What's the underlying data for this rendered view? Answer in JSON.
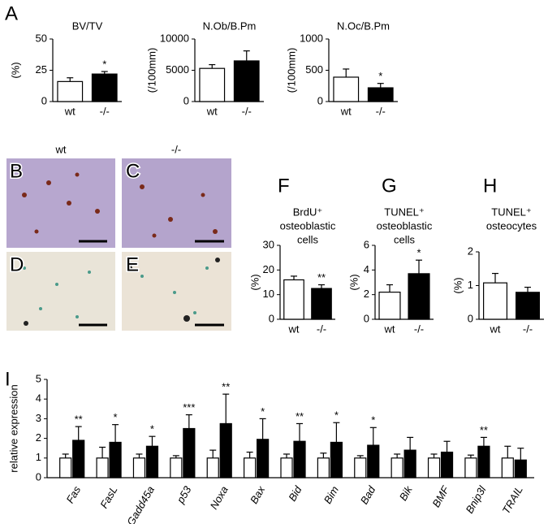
{
  "figure": {
    "panel_labels": [
      "A",
      "B",
      "C",
      "D",
      "E",
      "F",
      "G",
      "H",
      "I"
    ],
    "micrograph_labels": [
      "wt",
      "-/-"
    ]
  },
  "chart_data": [
    {
      "type": "bar",
      "title": [
        "BV/TV"
      ],
      "ylabel": "(%)",
      "categories": [
        "wt",
        "-/-"
      ],
      "values": [
        16,
        22
      ],
      "errors": [
        3,
        2
      ],
      "colors": [
        "#ffffff",
        "#000000"
      ],
      "annotations": [
        null,
        "*"
      ],
      "ylim": [
        0,
        50
      ],
      "yticks": [
        0,
        25,
        50
      ]
    },
    {
      "type": "bar",
      "title": [
        "N.Ob/B.Pm"
      ],
      "ylabel": "(/100mm)",
      "categories": [
        "wt",
        "-/-"
      ],
      "values": [
        5300,
        6500
      ],
      "errors": [
        600,
        1600
      ],
      "colors": [
        "#ffffff",
        "#000000"
      ],
      "annotations": [
        null,
        null
      ],
      "ylim": [
        0,
        10000
      ],
      "yticks": [
        0,
        5000,
        10000
      ]
    },
    {
      "type": "bar",
      "title": [
        "N.Oc/B.Pm"
      ],
      "ylabel": "(/100mm)",
      "categories": [
        "wt",
        "-/-"
      ],
      "values": [
        390,
        220
      ],
      "errors": [
        130,
        70
      ],
      "colors": [
        "#ffffff",
        "#000000"
      ],
      "annotations": [
        null,
        "*"
      ],
      "ylim": [
        0,
        1000
      ],
      "yticks": [
        0,
        500,
        1000
      ]
    },
    {
      "type": "bar",
      "title": [
        "BrdU⁺",
        "osteoblastic",
        "cells"
      ],
      "ylabel": "(%)",
      "categories": [
        "wt",
        "-/-"
      ],
      "values": [
        16,
        12.5
      ],
      "errors": [
        1.5,
        1.5
      ],
      "colors": [
        "#ffffff",
        "#000000"
      ],
      "annotations": [
        null,
        "**"
      ],
      "ylim": [
        0,
        30
      ],
      "yticks": [
        0,
        10,
        20,
        30
      ]
    },
    {
      "type": "bar",
      "title": [
        "TUNEL⁺",
        "osteoblastic",
        "cells"
      ],
      "ylabel": "(%)",
      "categories": [
        "wt",
        "-/-"
      ],
      "values": [
        2.2,
        3.7
      ],
      "errors": [
        0.6,
        1.1
      ],
      "colors": [
        "#ffffff",
        "#000000"
      ],
      "annotations": [
        null,
        "*"
      ],
      "ylim": [
        0,
        6
      ],
      "yticks": [
        0,
        2,
        4,
        6
      ]
    },
    {
      "type": "bar",
      "title": [
        "TUNEL⁺",
        "osteocytes"
      ],
      "ylabel": "(%)",
      "categories": [
        "wt",
        "-/-"
      ],
      "values": [
        1.08,
        0.8
      ],
      "errors": [
        0.28,
        0.15
      ],
      "colors": [
        "#ffffff",
        "#000000"
      ],
      "annotations": [
        null,
        null
      ],
      "ylim": [
        0,
        2
      ],
      "yticks": [
        0,
        1,
        2
      ]
    },
    {
      "type": "grouped-bar",
      "ylabel": "relative expression",
      "categories": [
        "Fas",
        "FasL",
        "Gadd45a",
        "p53",
        "Noxa",
        "Bax",
        "Bid",
        "Bim",
        "Bad",
        "Bik",
        "BMF",
        "Bnip3l",
        "TRAIL"
      ],
      "series": [
        {
          "color": "#ffffff",
          "values": [
            1,
            1,
            1,
            1,
            1,
            1,
            1,
            1,
            1,
            1,
            1,
            1,
            1
          ],
          "errors": [
            0.2,
            0.55,
            0.2,
            0.12,
            0.4,
            0.3,
            0.2,
            0.25,
            0.12,
            0.2,
            0.2,
            0.15,
            0.6
          ],
          "annotations": [
            null,
            null,
            null,
            null,
            null,
            null,
            null,
            null,
            null,
            null,
            null,
            null,
            null
          ]
        },
        {
          "color": "#000000",
          "values": [
            1.9,
            1.8,
            1.6,
            2.5,
            2.75,
            1.95,
            1.85,
            1.8,
            1.65,
            1.4,
            1.3,
            1.6,
            0.9
          ],
          "errors": [
            0.7,
            0.9,
            0.5,
            0.7,
            1.5,
            1.05,
            0.9,
            1.0,
            0.9,
            0.65,
            0.55,
            0.45,
            0.6
          ],
          "annotations": [
            "**",
            "*",
            "*",
            "***",
            "**",
            "*",
            "**",
            "*",
            "*",
            null,
            null,
            "**",
            null
          ]
        }
      ],
      "ylim": [
        0,
        5
      ],
      "yticks": [
        0,
        1,
        2,
        3,
        4,
        5
      ]
    }
  ]
}
